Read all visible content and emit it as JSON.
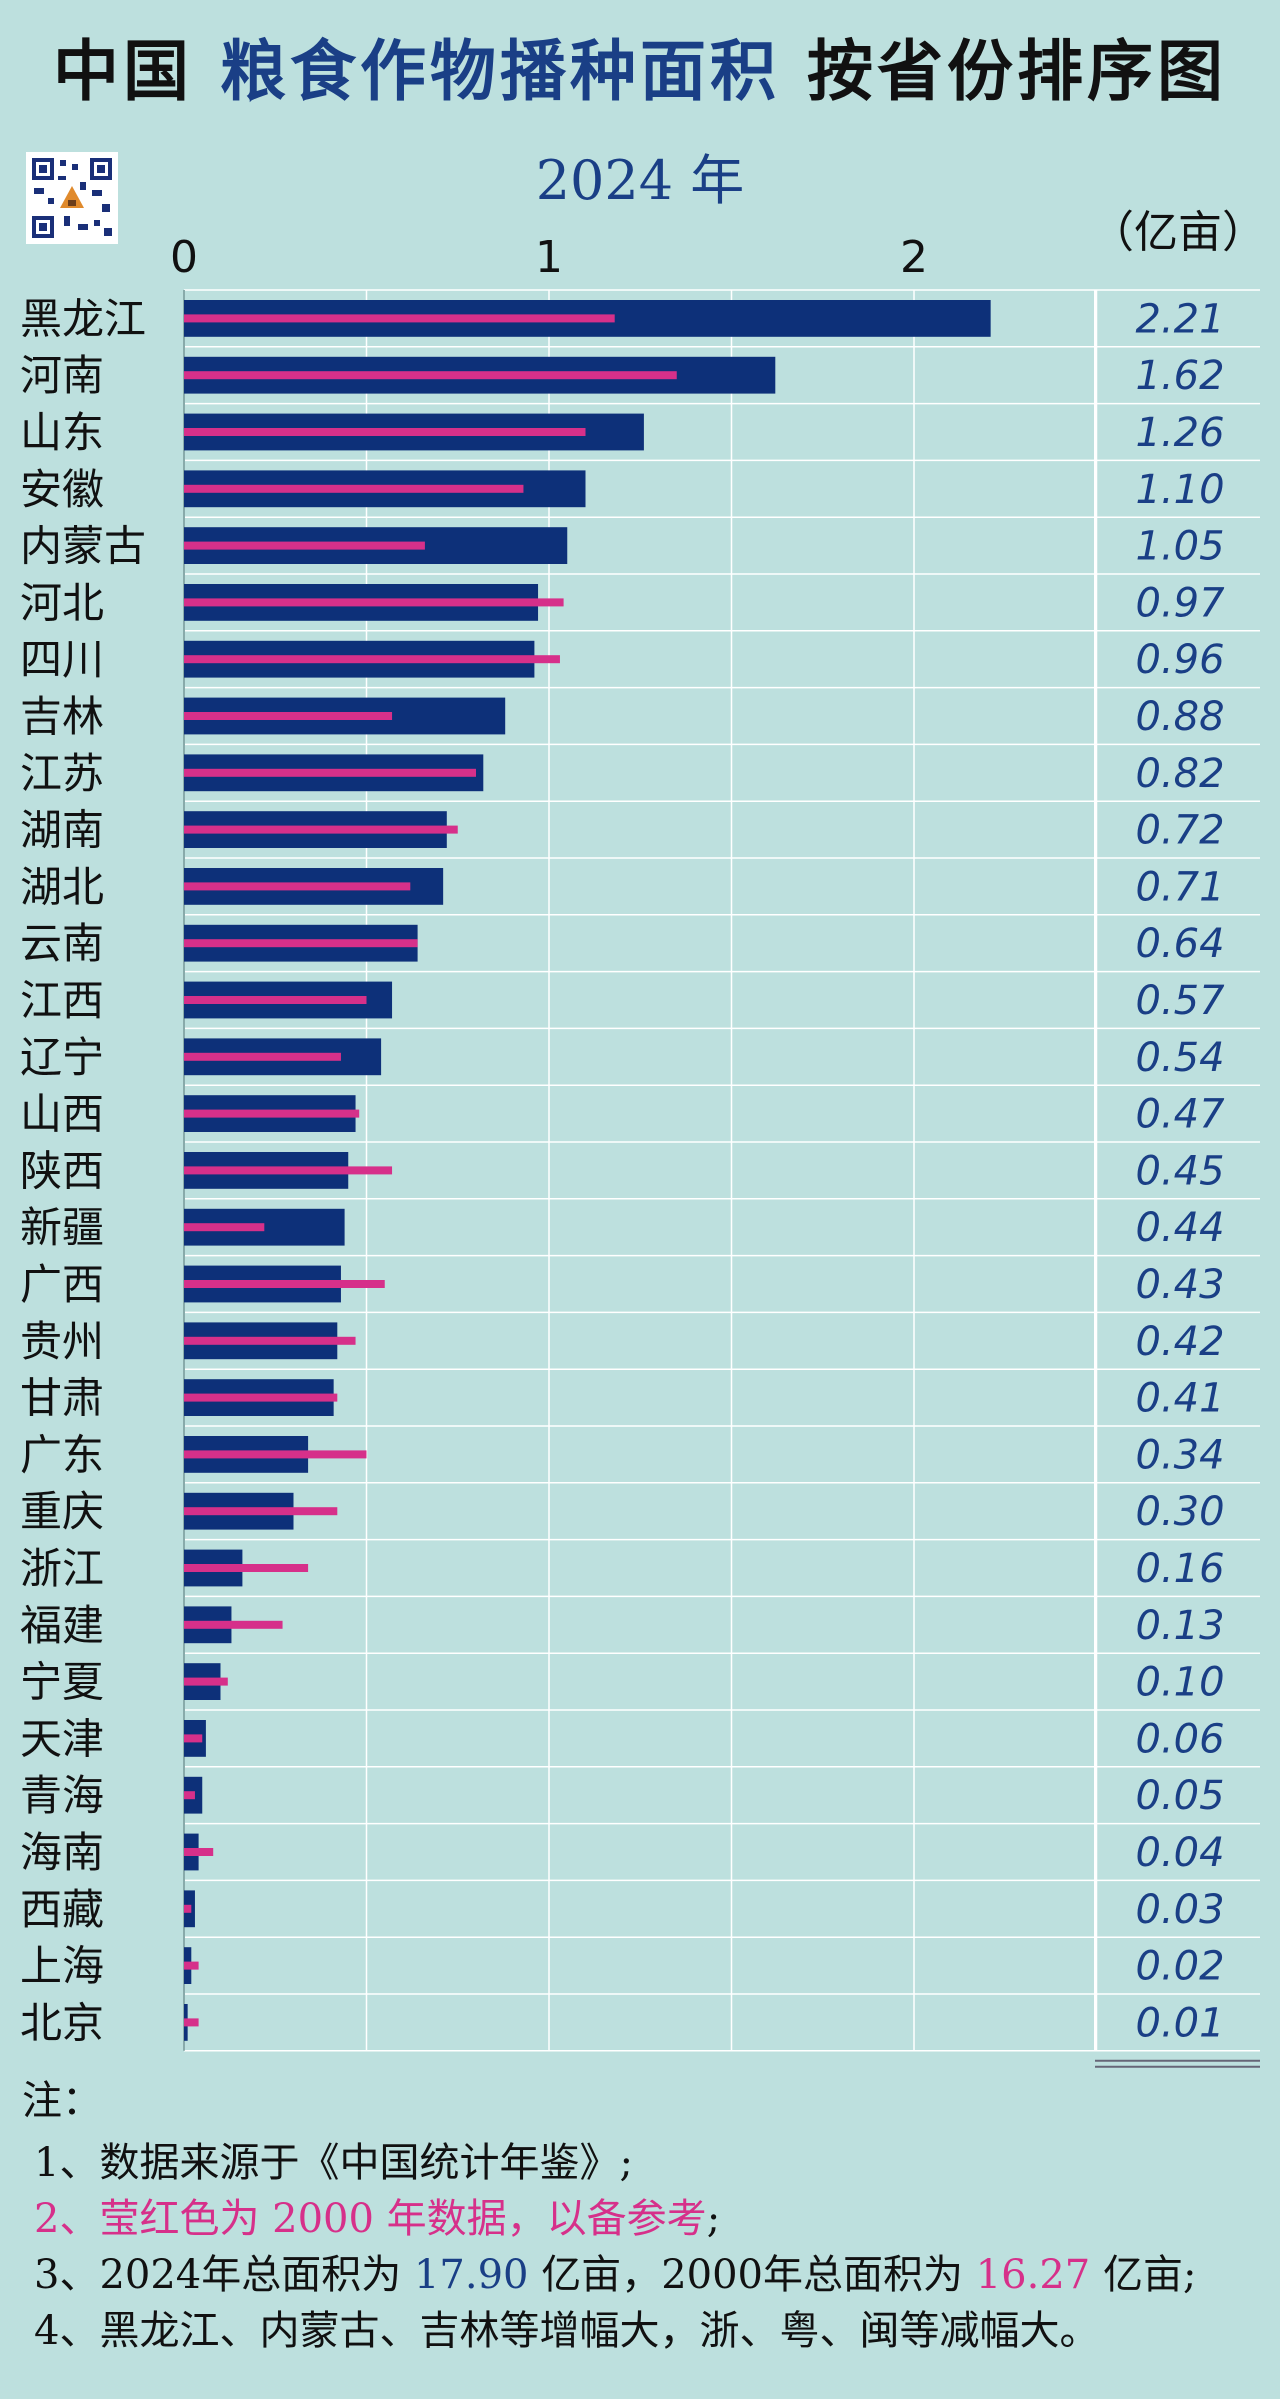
{
  "colors": {
    "background": "#bde0de",
    "bar_2024": "#0d3079",
    "bar_2000": "#d6308a",
    "value_text": "#1a3f86",
    "grid": "#ffffff"
  },
  "header": {
    "title_part1": "中国",
    "title_part2": "粮食作物播种面积",
    "title_part3": "按省份排序图",
    "subtitle": "2024 年",
    "unit": "（亿亩）",
    "qr_icon": "qr-code-icon"
  },
  "chart_data": {
    "type": "bar",
    "orientation": "horizontal",
    "xlim": [
      0,
      2.5
    ],
    "x_ticks": [
      "0",
      "1",
      "2"
    ],
    "grid": true,
    "categories": [
      "黑龙江",
      "河南",
      "山东",
      "安徽",
      "内蒙古",
      "河北",
      "四川",
      "吉林",
      "江苏",
      "湖南",
      "湖北",
      "云南",
      "江西",
      "辽宁",
      "山西",
      "陕西",
      "新疆",
      "广西",
      "贵州",
      "甘肃",
      "广东",
      "重庆",
      "浙江",
      "福建",
      "宁夏",
      "天津",
      "青海",
      "海南",
      "西藏",
      "上海",
      "北京"
    ],
    "series": [
      {
        "values": [
          2.21,
          1.62,
          1.26,
          1.1,
          1.05,
          0.97,
          0.96,
          0.88,
          0.82,
          0.72,
          0.71,
          0.64,
          0.57,
          0.54,
          0.47,
          0.45,
          0.44,
          0.43,
          0.42,
          0.41,
          0.34,
          0.3,
          0.16,
          0.13,
          0.1,
          0.06,
          0.05,
          0.04,
          0.03,
          0.02,
          0.01
        ]
      },
      {
        "values": [
          1.18,
          1.35,
          1.1,
          0.93,
          0.66,
          1.04,
          1.03,
          0.57,
          0.8,
          0.75,
          0.62,
          0.64,
          0.5,
          0.43,
          0.48,
          0.57,
          0.22,
          0.55,
          0.47,
          0.42,
          0.5,
          0.42,
          0.34,
          0.27,
          0.12,
          0.05,
          0.03,
          0.08,
          0.02,
          0.04,
          0.04
        ]
      }
    ],
    "value_labels": [
      "2.21",
      "1.62",
      "1.26",
      "1.10",
      "1.05",
      "0.97",
      "0.96",
      "0.88",
      "0.82",
      "0.72",
      "0.71",
      "0.64",
      "0.57",
      "0.54",
      "0.47",
      "0.45",
      "0.44",
      "0.43",
      "0.42",
      "0.41",
      "0.34",
      "0.30",
      "0.16",
      "0.13",
      "0.10",
      "0.06",
      "0.05",
      "0.04",
      "0.03",
      "0.02",
      "0.01"
    ],
    "total_label": "17.90"
  },
  "notes": {
    "head": "注：",
    "line1": "1、数据来源于《中国统计年鉴》;",
    "line2_colored": "2、莹红色为 2000 年数据，以备参考",
    "line2_tail": ";",
    "line3_a": "3、2024年总面积为 ",
    "line3_b": "17.90",
    "line3_c": " 亿亩，2000年总面积为 ",
    "line3_d": "16.27",
    "line3_e": " 亿亩;",
    "line4": "4、黑龙江、内蒙古、吉林等增幅大，浙、粤、闽等减幅大。"
  }
}
